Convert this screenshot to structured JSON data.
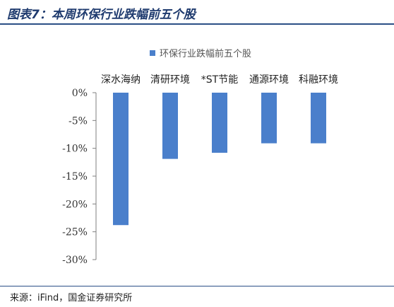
{
  "title": "图表7：本周环保行业跌幅前五个股",
  "source": "来源：iFind，国金证券研究所",
  "colors": {
    "bar": "#4a7fcb",
    "axis": "#7f7f7f",
    "rule": "#2b4f86"
  },
  "chart_data": {
    "type": "bar",
    "categories": [
      "深水海纳",
      "清研环境",
      "*ST节能",
      "通源环境",
      "科融环境"
    ],
    "series": [
      {
        "name": "环保行业跌幅前五个股",
        "values": [
          -23.8,
          -11.9,
          -10.8,
          -9.1,
          -9.1
        ]
      }
    ],
    "y_ticks": [
      "0%",
      "-5%",
      "-10%",
      "-15%",
      "-20%",
      "-25%",
      "-30%"
    ],
    "ylim": [
      -30,
      0
    ],
    "legend_position": "top",
    "grid": false
  }
}
